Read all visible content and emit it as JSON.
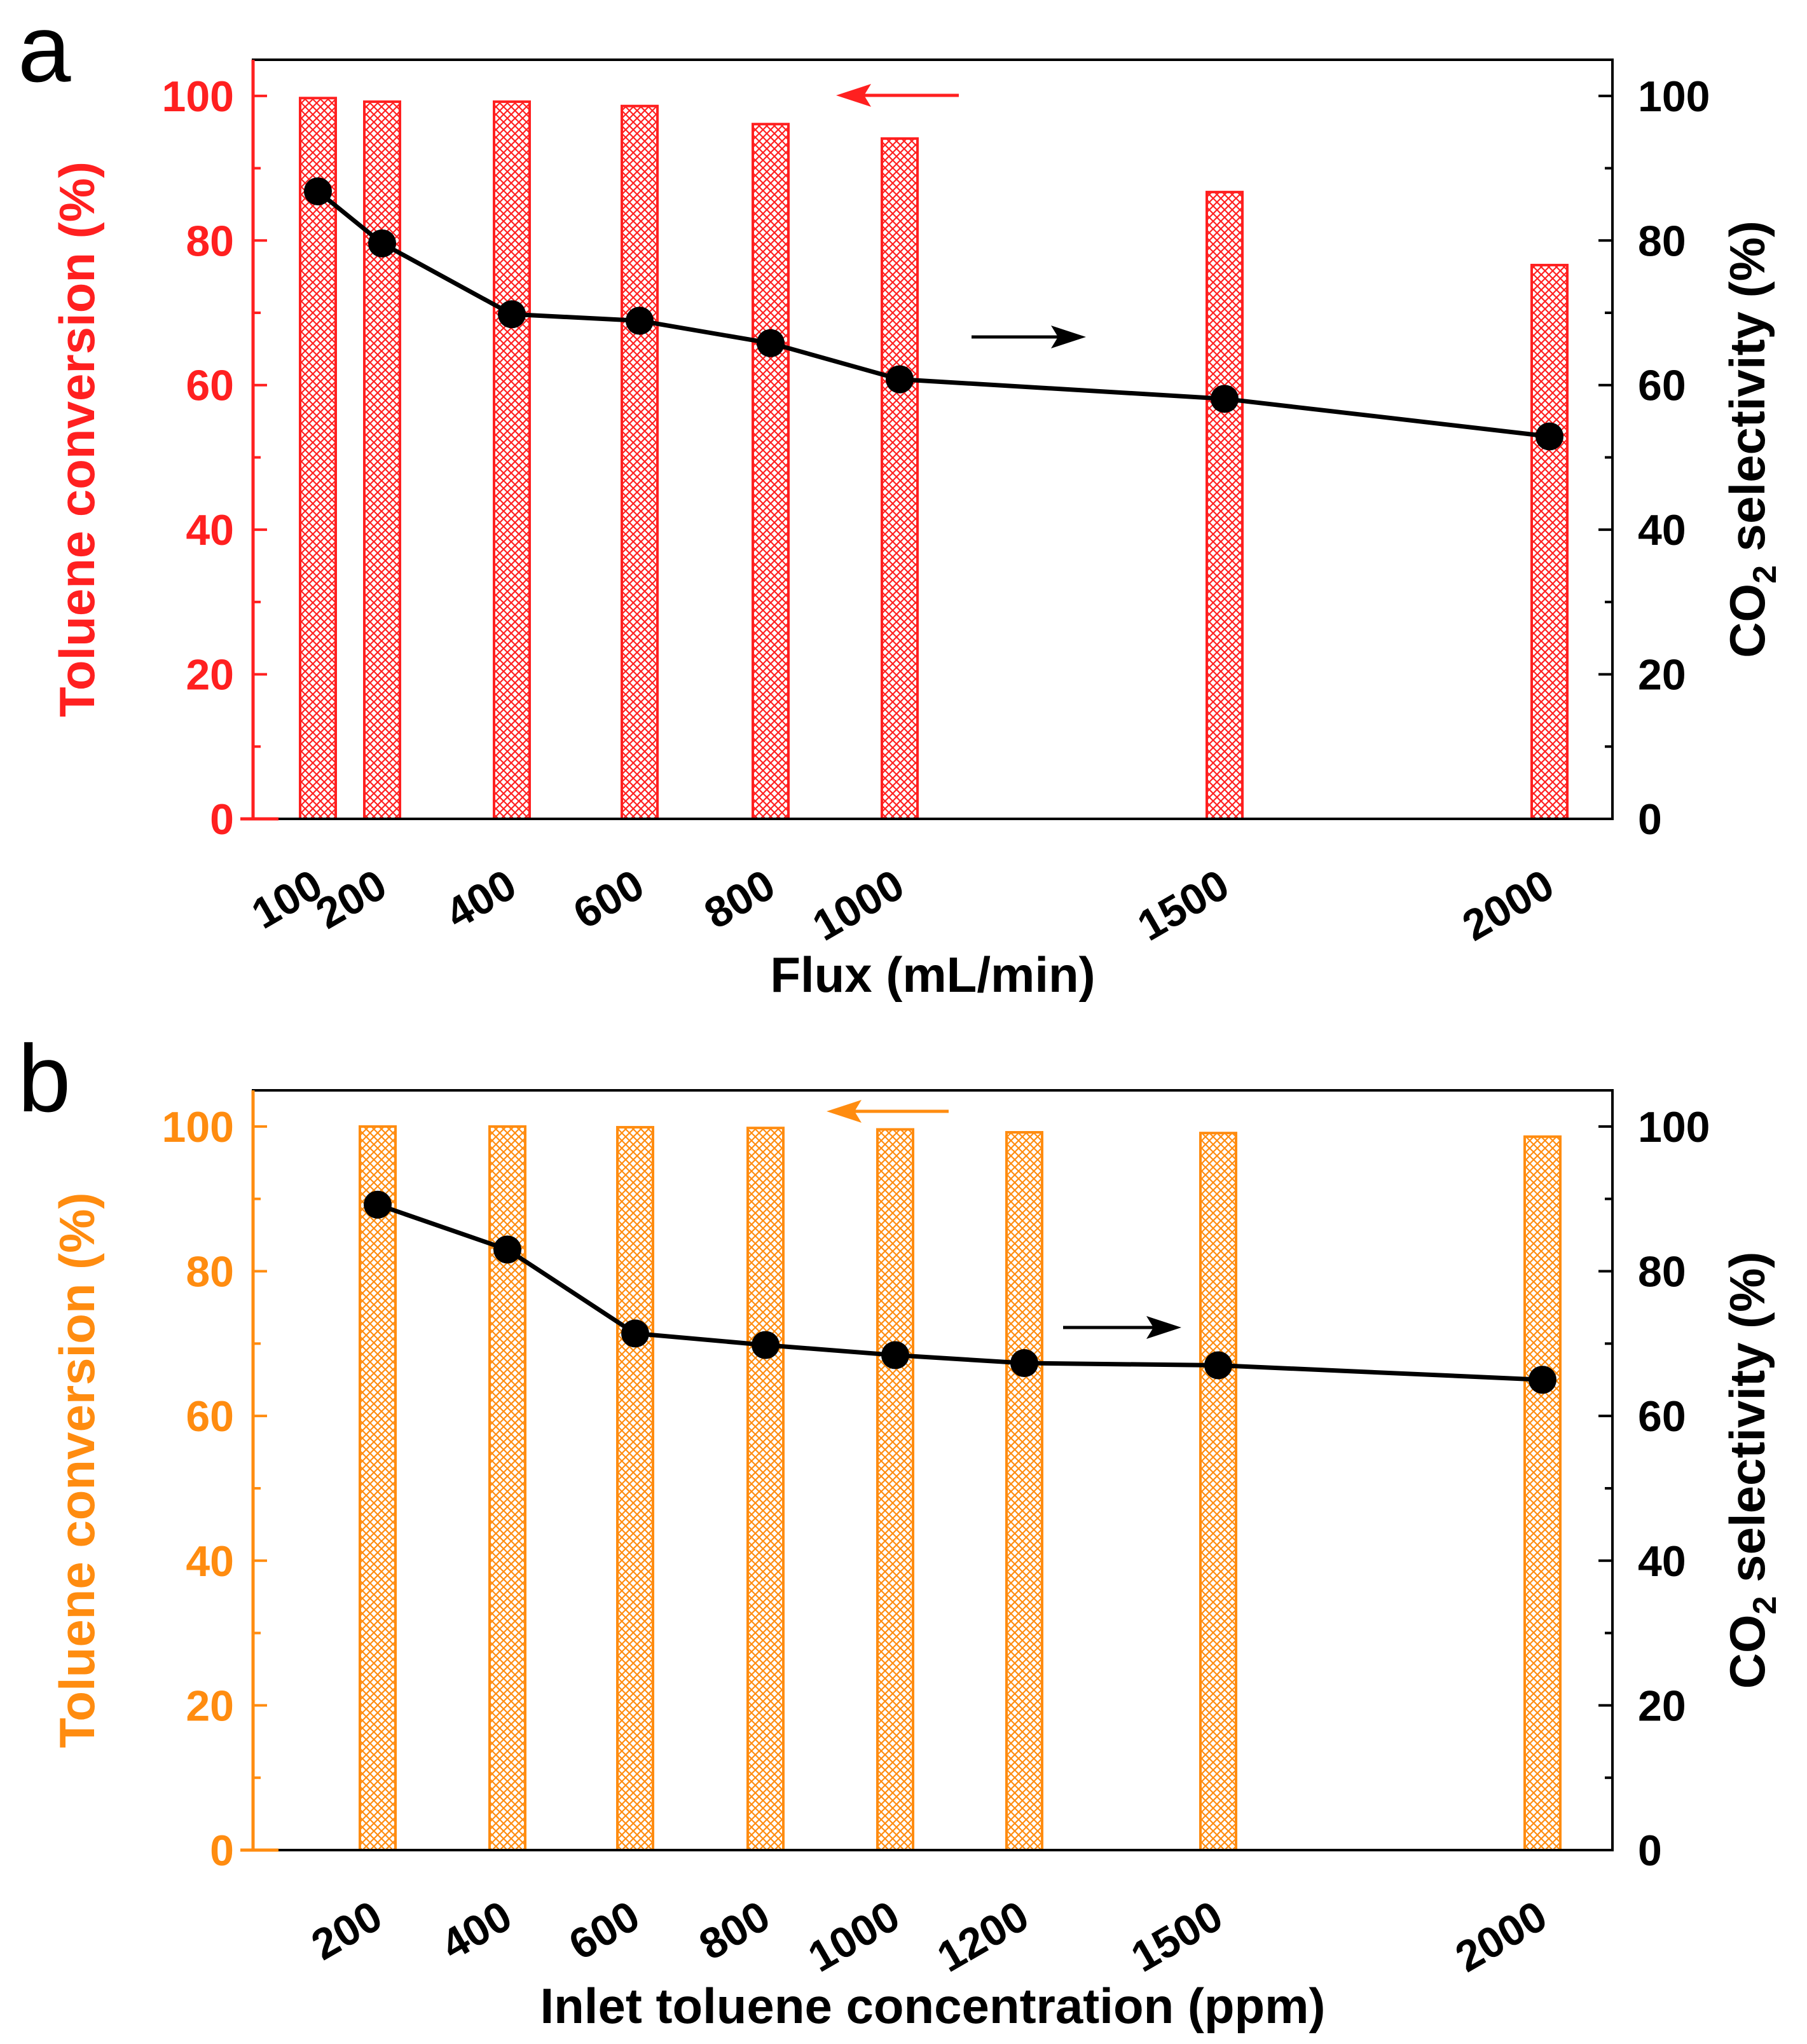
{
  "chart_data": [
    {
      "panel": "a",
      "type": "bar+line",
      "xlabel": "Flux (mL/min)",
      "categories": [
        "100",
        "200",
        "400",
        "600",
        "800",
        "1000",
        "1500",
        "2000"
      ],
      "x": [
        100,
        200,
        400,
        600,
        800,
        1000,
        1500,
        2000
      ],
      "ylabel_left": "Toluene conversion",
      "ylabel_left_unit": "(%)",
      "ylabel_right_prefix": "CO",
      "ylabel_right_sub": "2",
      "ylabel_right_suffix": " selectivity (%)",
      "ylim": [
        0,
        105
      ],
      "yticks": [
        0,
        20,
        40,
        60,
        80,
        100
      ],
      "series": [
        {
          "name": "Toluene conversion",
          "type": "bar",
          "axis": "left",
          "color": "#ff2020",
          "values": [
            99.7,
            99.2,
            99.2,
            98.6,
            96.1,
            94.1,
            86.7,
            76.6
          ]
        },
        {
          "name": "CO2 selectivity",
          "type": "line",
          "axis": "right",
          "color": "#000000",
          "values": [
            86.8,
            79.6,
            69.8,
            68.9,
            65.8,
            60.8,
            58.1,
            52.9
          ]
        }
      ],
      "left_color": "#ff2020",
      "annotations": [
        "left arrow (conversion axis)",
        "right arrow (selectivity axis)"
      ]
    },
    {
      "panel": "b",
      "type": "bar+line",
      "xlabel": "Inlet toluene concentration (ppm)",
      "categories": [
        "200",
        "400",
        "600",
        "800",
        "1000",
        "1200",
        "1500",
        "2000"
      ],
      "x": [
        200,
        400,
        600,
        800,
        1000,
        1200,
        1500,
        2000
      ],
      "ylabel_left": "Toluene conversion",
      "ylabel_left_unit": "(%)",
      "ylabel_right_prefix": "CO",
      "ylabel_right_sub": "2",
      "ylabel_right_suffix": " selectivity (%)",
      "ylim": [
        0,
        105
      ],
      "yticks": [
        0,
        20,
        40,
        60,
        80,
        100
      ],
      "series": [
        {
          "name": "Toluene conversion",
          "type": "bar",
          "axis": "left",
          "color": "#ff8c10",
          "values": [
            100,
            100,
            99.9,
            99.8,
            99.6,
            99.2,
            99.1,
            98.6
          ]
        },
        {
          "name": "CO2 selectivity",
          "type": "line",
          "axis": "right",
          "color": "#000000",
          "values": [
            89.2,
            83.0,
            71.4,
            69.8,
            68.4,
            67.3,
            67.0,
            65.0
          ]
        }
      ],
      "left_color": "#ff8c10",
      "annotations": [
        "left arrow (conversion axis)",
        "right arrow (selectivity axis)"
      ]
    }
  ],
  "panel_labels": [
    "a",
    "b"
  ]
}
